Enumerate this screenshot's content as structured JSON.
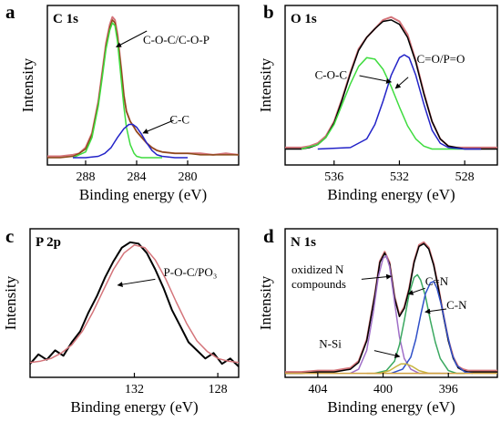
{
  "chart_data": [
    {
      "type": "line",
      "panel_label": "a",
      "title": "C 1s",
      "xlabel": "Binding energy (eV)",
      "ylabel": "Intensity",
      "xlim": [
        291,
        276
      ],
      "ylim": [
        0,
        1.1
      ],
      "xticks": [
        288,
        284,
        280
      ],
      "xticklabels": [
        "288",
        "284",
        "280"
      ],
      "annotations": [
        {
          "text": "C-O-C/C-O-P",
          "x": 285.7,
          "y": 0.78
        },
        {
          "text": "C-C",
          "x": 284.2,
          "y": 0.28
        }
      ],
      "series": [
        {
          "role": "raw",
          "color": "#d4747a",
          "x": [
            291,
            290,
            289,
            288.5,
            288,
            287.5,
            287,
            286.7,
            286.4,
            286.1,
            285.9,
            285.7,
            285.5,
            285.2,
            285,
            284.8,
            284.5,
            284.2,
            284,
            283.6,
            283.2,
            282.8,
            282.4,
            282,
            281,
            280,
            279,
            278,
            277,
            276
          ],
          "y": [
            0.06,
            0.06,
            0.07,
            0.08,
            0.12,
            0.22,
            0.44,
            0.64,
            0.84,
            0.97,
            1.02,
            1.0,
            0.9,
            0.66,
            0.48,
            0.37,
            0.3,
            0.26,
            0.23,
            0.19,
            0.15,
            0.12,
            0.1,
            0.09,
            0.08,
            0.08,
            0.08,
            0.07,
            0.08,
            0.07
          ]
        },
        {
          "role": "envelope",
          "color": "#8a4a18",
          "x": [
            291,
            290,
            289,
            288.5,
            288,
            287.5,
            287,
            286.7,
            286.4,
            286.1,
            285.9,
            285.7,
            285.5,
            285.2,
            285,
            284.8,
            284.5,
            284.2,
            284,
            283.6,
            283.2,
            282.8,
            282.4,
            282,
            281,
            280,
            279,
            278,
            277,
            276
          ],
          "y": [
            0.05,
            0.05,
            0.06,
            0.08,
            0.11,
            0.21,
            0.43,
            0.62,
            0.82,
            0.95,
            1.0,
            0.98,
            0.88,
            0.65,
            0.48,
            0.37,
            0.3,
            0.26,
            0.23,
            0.19,
            0.15,
            0.12,
            0.1,
            0.09,
            0.08,
            0.08,
            0.07,
            0.07,
            0.07,
            0.07
          ]
        },
        {
          "role": "C-O-C/C-O-P",
          "color": "#3fdc3f",
          "x": [
            289,
            288,
            287.5,
            287,
            286.7,
            286.4,
            286.1,
            285.9,
            285.7,
            285.5,
            285.2,
            285,
            284.8,
            284.5,
            284.2,
            284,
            283.6,
            283.2,
            282.8,
            282
          ],
          "y": [
            0.05,
            0.09,
            0.19,
            0.41,
            0.6,
            0.8,
            0.93,
            0.98,
            0.96,
            0.85,
            0.58,
            0.4,
            0.26,
            0.14,
            0.08,
            0.06,
            0.05,
            0.05,
            0.05,
            0.05
          ]
        },
        {
          "role": "C-C",
          "color": "#2323c8",
          "x": [
            289,
            288,
            287,
            286.5,
            286,
            285.5,
            285,
            284.6,
            284.3,
            284,
            283.6,
            283.2,
            282.8,
            282.4,
            282,
            281,
            280
          ],
          "y": [
            0.05,
            0.05,
            0.06,
            0.08,
            0.12,
            0.19,
            0.25,
            0.28,
            0.28,
            0.26,
            0.21,
            0.15,
            0.1,
            0.07,
            0.06,
            0.05,
            0.05
          ]
        }
      ]
    },
    {
      "type": "line",
      "panel_label": "b",
      "title": "O 1s",
      "xlabel": "Binding energy (eV)",
      "ylabel": "Intensity",
      "xlim": [
        539,
        526
      ],
      "ylim": [
        0,
        1.1
      ],
      "xticks": [
        536,
        532,
        528
      ],
      "xticklabels": [
        "536",
        "532",
        "528"
      ],
      "annotations": [
        {
          "text": "C-O-C",
          "x": 533.6,
          "y": 0.68
        },
        {
          "text": "C=O/P=O",
          "x": 531.8,
          "y": 0.7
        }
      ],
      "series": [
        {
          "role": "raw",
          "color": "#d4747a",
          "x": [
            539,
            538,
            537.5,
            537,
            536.5,
            536,
            535.5,
            535,
            534.5,
            534,
            533.5,
            533,
            532.5,
            532,
            531.5,
            531,
            530.5,
            530,
            529.5,
            529,
            528.5,
            528,
            527,
            526
          ],
          "y": [
            0.12,
            0.12,
            0.13,
            0.15,
            0.2,
            0.3,
            0.46,
            0.64,
            0.8,
            0.88,
            0.94,
            1.0,
            1.02,
            0.99,
            0.9,
            0.72,
            0.5,
            0.3,
            0.18,
            0.13,
            0.12,
            0.12,
            0.12,
            0.12
          ]
        },
        {
          "role": "envelope",
          "color": "#000000",
          "x": [
            539,
            538,
            537.5,
            537,
            536.5,
            536,
            535.5,
            535,
            534.5,
            534,
            533.5,
            533,
            532.5,
            532,
            531.5,
            531,
            530.5,
            530,
            529.5,
            529,
            528.5,
            528,
            527,
            526
          ],
          "y": [
            0.11,
            0.11,
            0.12,
            0.14,
            0.19,
            0.29,
            0.45,
            0.63,
            0.79,
            0.88,
            0.94,
            0.99,
            1.0,
            0.97,
            0.88,
            0.71,
            0.49,
            0.3,
            0.18,
            0.13,
            0.12,
            0.11,
            0.11,
            0.11
          ]
        },
        {
          "role": "C-O-C",
          "color": "#3fdc3f",
          "x": [
            538,
            537,
            536.5,
            536,
            535.5,
            535,
            534.5,
            534,
            533.5,
            533,
            532.5,
            532,
            531.5,
            531,
            530.5,
            530,
            529.5,
            529,
            528
          ],
          "y": [
            0.11,
            0.14,
            0.19,
            0.28,
            0.42,
            0.56,
            0.68,
            0.74,
            0.73,
            0.66,
            0.54,
            0.4,
            0.27,
            0.18,
            0.13,
            0.11,
            0.11,
            0.11,
            0.11
          ]
        },
        {
          "role": "C=O/P=O",
          "color": "#2323c8",
          "x": [
            537,
            535,
            534,
            533.5,
            533,
            532.5,
            532,
            531.7,
            531.4,
            531,
            530.5,
            530,
            529.5,
            529,
            528,
            527
          ],
          "y": [
            0.11,
            0.12,
            0.18,
            0.28,
            0.44,
            0.62,
            0.74,
            0.76,
            0.74,
            0.62,
            0.42,
            0.24,
            0.15,
            0.12,
            0.11,
            0.11
          ]
        }
      ]
    },
    {
      "type": "line",
      "panel_label": "c",
      "title": "P 2p",
      "xlabel": "Binding energy (eV)",
      "ylabel": "Intensity",
      "xlim": [
        137,
        127
      ],
      "ylim": [
        0,
        1.1
      ],
      "xticks": [
        132,
        128
      ],
      "xticklabels": [
        "132",
        "128"
      ],
      "annotations": [
        {
          "text": "P-O-C/PO₃",
          "x": 131.0,
          "y": 0.62
        }
      ],
      "series": [
        {
          "role": "raw",
          "color": "#000000",
          "x": [
            137,
            136.6,
            136.2,
            135.8,
            135.4,
            135,
            134.6,
            134.2,
            133.8,
            133.4,
            133,
            132.6,
            132.2,
            131.8,
            131.4,
            131,
            130.6,
            130.2,
            129.8,
            129.4,
            129,
            128.6,
            128.2,
            127.8,
            127.4,
            127
          ],
          "y": [
            0.1,
            0.17,
            0.13,
            0.2,
            0.16,
            0.26,
            0.34,
            0.48,
            0.6,
            0.74,
            0.86,
            0.96,
            1.0,
            0.99,
            0.92,
            0.8,
            0.66,
            0.5,
            0.38,
            0.26,
            0.2,
            0.14,
            0.18,
            0.1,
            0.14,
            0.08
          ]
        },
        {
          "role": "fit",
          "color": "#d4747a",
          "x": [
            137,
            136.5,
            136,
            135.5,
            135,
            134.5,
            134,
            133.5,
            133,
            132.5,
            132,
            131.5,
            131,
            130.5,
            130,
            129.5,
            129,
            128.5,
            128,
            127.5,
            127
          ],
          "y": [
            0.11,
            0.12,
            0.14,
            0.18,
            0.24,
            0.34,
            0.48,
            0.64,
            0.8,
            0.92,
            0.98,
            0.96,
            0.87,
            0.73,
            0.56,
            0.4,
            0.27,
            0.19,
            0.14,
            0.12,
            0.11
          ]
        }
      ]
    },
    {
      "type": "line",
      "panel_label": "d",
      "title": "N 1s",
      "xlabel": "Binding energy (eV)",
      "ylabel": "Intensity",
      "xlim": [
        406,
        393
      ],
      "ylim": [
        0,
        1.1
      ],
      "xticks": [
        404,
        400,
        396
      ],
      "xticklabels": [
        "404",
        "400",
        "396"
      ],
      "annotations": [
        {
          "text": "oxidized N",
          "x": 401.5,
          "y": 0.86
        },
        {
          "text": "compounds",
          "x": 401.5,
          "y": 0.76
        },
        {
          "text": "C=N",
          "x": 397.6,
          "y": 0.76
        },
        {
          "text": "C-N",
          "x": 396.9,
          "y": 0.56
        },
        {
          "text": "N-Si",
          "x": 399.2,
          "y": 0.1
        }
      ],
      "series": [
        {
          "role": "raw",
          "color": "#d4747a",
          "x": [
            406,
            405,
            404,
            403,
            402.5,
            402,
            401.5,
            401,
            400.5,
            400.2,
            399.9,
            399.6,
            399.3,
            399,
            398.7,
            398.4,
            398.1,
            397.8,
            397.5,
            397.2,
            396.9,
            396.6,
            396.3,
            396,
            395.7,
            395.4,
            395.1,
            394.8,
            394.5,
            394,
            393.5,
            393
          ],
          "y": [
            0.04,
            0.04,
            0.05,
            0.05,
            0.06,
            0.07,
            0.12,
            0.28,
            0.62,
            0.86,
            0.93,
            0.85,
            0.6,
            0.46,
            0.52,
            0.66,
            0.86,
            0.98,
            1.0,
            0.96,
            0.84,
            0.66,
            0.46,
            0.28,
            0.15,
            0.08,
            0.06,
            0.05,
            0.05,
            0.05,
            0.05,
            0.05
          ]
        },
        {
          "role": "envelope",
          "color": "#000000",
          "x": [
            406,
            405,
            404,
            403,
            402.5,
            402,
            401.5,
            401,
            400.5,
            400.2,
            399.9,
            399.6,
            399.3,
            399,
            398.7,
            398.4,
            398.1,
            397.8,
            397.5,
            397.2,
            396.9,
            396.6,
            396.3,
            396,
            395.7,
            395.4,
            395.1,
            394.8,
            394.5,
            394,
            393.5,
            393
          ],
          "y": [
            0.03,
            0.03,
            0.04,
            0.04,
            0.05,
            0.06,
            0.11,
            0.27,
            0.61,
            0.85,
            0.92,
            0.84,
            0.59,
            0.45,
            0.51,
            0.65,
            0.85,
            0.97,
            0.99,
            0.95,
            0.83,
            0.65,
            0.45,
            0.27,
            0.14,
            0.07,
            0.05,
            0.04,
            0.04,
            0.04,
            0.04,
            0.04
          ]
        },
        {
          "role": "oxidized N compounds",
          "color": "#a070c8",
          "x": [
            402,
            401.5,
            401,
            400.6,
            400.3,
            400,
            399.8,
            399.6,
            399.3,
            399,
            398.7,
            398.3,
            397.8,
            397,
            396
          ],
          "y": [
            0.03,
            0.06,
            0.2,
            0.48,
            0.74,
            0.88,
            0.9,
            0.82,
            0.56,
            0.3,
            0.14,
            0.06,
            0.03,
            0.03,
            0.03
          ]
        },
        {
          "role": "C=N",
          "color": "#3aa860",
          "x": [
            400.5,
            399.8,
            399.3,
            399,
            398.7,
            398.4,
            398.1,
            397.9,
            397.7,
            397.4,
            397.1,
            396.8,
            396.5,
            396,
            395.5,
            395
          ],
          "y": [
            0.03,
            0.05,
            0.12,
            0.24,
            0.42,
            0.62,
            0.74,
            0.76,
            0.72,
            0.6,
            0.42,
            0.26,
            0.14,
            0.05,
            0.03,
            0.03
          ]
        },
        {
          "role": "C-N",
          "color": "#3050c8",
          "x": [
            399.5,
            398.8,
            398.3,
            398,
            397.7,
            397.4,
            397.1,
            396.9,
            396.7,
            396.4,
            396.1,
            395.8,
            395.5,
            395,
            394.5
          ],
          "y": [
            0.03,
            0.06,
            0.15,
            0.28,
            0.46,
            0.62,
            0.7,
            0.71,
            0.66,
            0.52,
            0.34,
            0.18,
            0.09,
            0.04,
            0.03
          ]
        },
        {
          "role": "N-Si",
          "color": "#c8b440",
          "x": [
            401,
            400.2,
            399.6,
            399.2,
            398.9,
            398.6,
            398.2,
            397.8,
            397.2,
            396.5
          ],
          "y": [
            0.03,
            0.03,
            0.05,
            0.08,
            0.1,
            0.1,
            0.08,
            0.05,
            0.03,
            0.03
          ]
        },
        {
          "role": "baseline",
          "color": "#d0a040",
          "x": [
            406,
            393
          ],
          "y": [
            0.03,
            0.03
          ]
        }
      ]
    }
  ]
}
